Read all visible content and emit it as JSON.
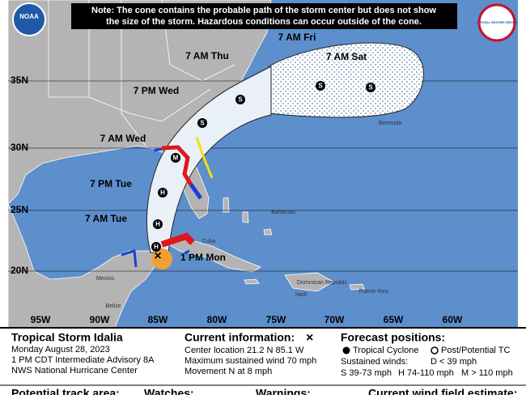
{
  "note": [
    "Note: The cone contains the probable path of the storm center but does not show",
    "the size of the storm. Hazardous conditions can occur outside of the cone."
  ],
  "logos": {
    "noaa": "NOAA",
    "nws": "NATIONAL WEATHER SERVICE"
  },
  "map": {
    "lat_labels": [
      "35N",
      "30N",
      "25N",
      "20N"
    ],
    "lon_labels": [
      "95W",
      "90W",
      "85W",
      "80W",
      "75W",
      "70W",
      "65W",
      "60W"
    ],
    "places": [
      "Bermuda",
      "Bahamas",
      "Cuba",
      "Mexico",
      "Belize",
      "Haiti",
      "Dominican Republic",
      "Puerto Rico"
    ],
    "track": {
      "times": [
        "7 AM Fri",
        "7 AM Sat",
        "7 AM Thu",
        "7 PM Wed",
        "7 AM Wed",
        "7 PM Tue",
        "7 AM Tue",
        "1 PM Mon"
      ],
      "symbols": [
        "S",
        "S",
        "S",
        "S",
        "M",
        "H",
        "H",
        "H",
        "×"
      ]
    }
  },
  "info": {
    "storm": [
      "Tropical Storm Idalia",
      "Monday August 28, 2023",
      "1 PM CDT Intermediate Advisory 8A",
      "NWS National Hurricane Center"
    ],
    "current": {
      "title": "Current information:",
      "symbol": "×",
      "lines": [
        "Center location 21.2 N 85.1 W",
        "Maximum sustained wind 70 mph",
        "Movement N at 8 mph"
      ]
    },
    "forecast": {
      "title": "Forecast positions:",
      "tc": "Tropical Cyclone",
      "ptc": "Post/Potential TC",
      "winds": "Sustained winds:",
      "d": "D < 39 mph",
      "s": "S 39-73 mph",
      "h": "H 74-110 mph",
      "m": "M > 110 mph"
    },
    "footer": [
      "Potential track area:",
      "Watches:",
      "Warnings:",
      "Current wind field estimate:"
    ]
  }
}
